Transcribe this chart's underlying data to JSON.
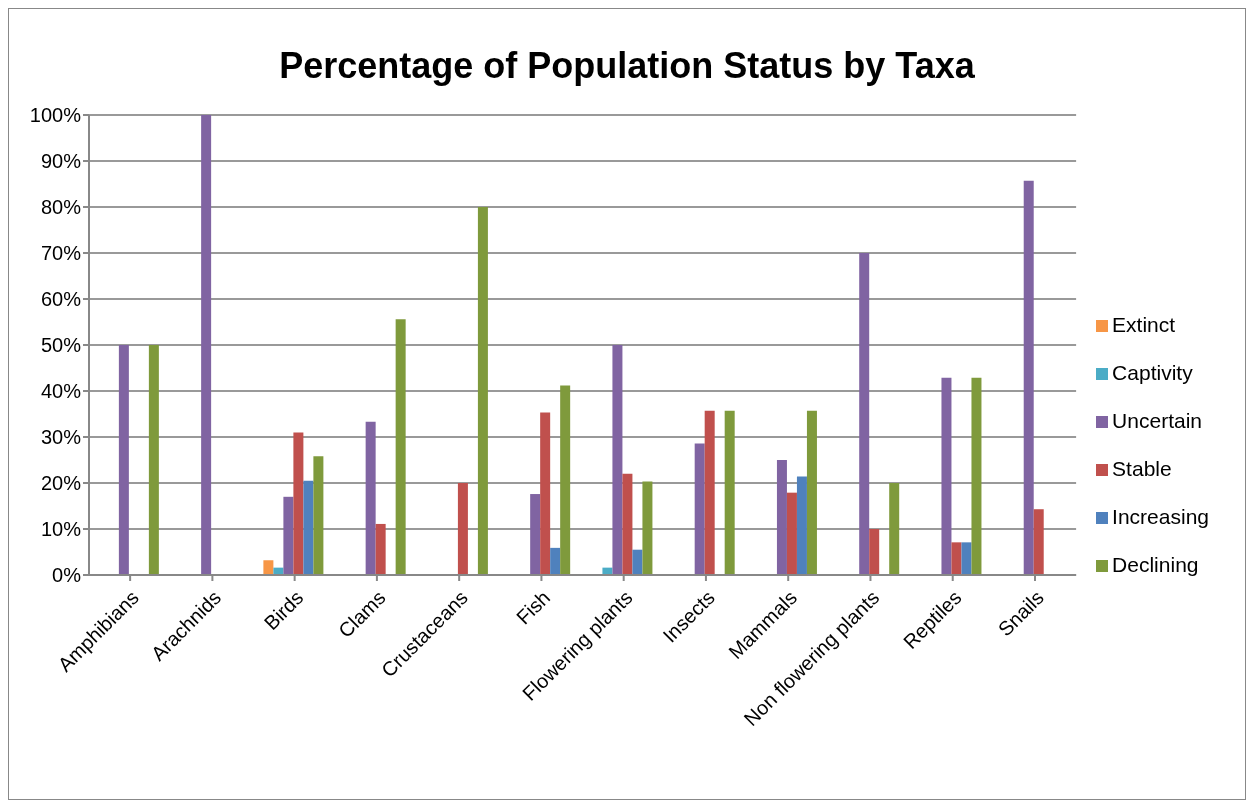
{
  "chart_data": {
    "type": "bar",
    "title": "Percentage of Population Status by Taxa",
    "categories": [
      "Amphibians",
      "Arachnids",
      "Birds",
      "Clams",
      "Crustaceans",
      "Fish",
      "Flowering plants",
      "Insects",
      "Mammals",
      "Non flowering plants",
      "Reptiles",
      "Snails"
    ],
    "series": [
      {
        "name": "Extinct",
        "color": "#f79646",
        "values": [
          0,
          0,
          3.2,
          0,
          0,
          0,
          0,
          0,
          0,
          0,
          0,
          0
        ]
      },
      {
        "name": "Captivity",
        "color": "#4bacc6",
        "values": [
          0,
          0,
          1.6,
          0,
          0,
          0,
          1.6,
          0,
          0,
          0,
          0,
          0
        ]
      },
      {
        "name": "Uncertain",
        "color": "#8064a2",
        "values": [
          50,
          100,
          17,
          33.3,
          0,
          17.6,
          50,
          28.6,
          25,
          70,
          42.9,
          85.7
        ]
      },
      {
        "name": "Stable",
        "color": "#c0504d",
        "values": [
          0,
          0,
          31,
          11.1,
          20,
          35.3,
          22,
          35.7,
          17.9,
          10,
          7.1,
          14.3
        ]
      },
      {
        "name": "Increasing",
        "color": "#4f81bd",
        "values": [
          0,
          0,
          20.5,
          0,
          0,
          5.9,
          5.5,
          0,
          21.4,
          0,
          7.1,
          0
        ]
      },
      {
        "name": "Declining",
        "color": "#7f9a3c",
        "values": [
          50,
          0,
          25.8,
          55.6,
          80,
          41.2,
          20.3,
          35.7,
          35.7,
          20,
          42.9,
          0
        ]
      }
    ],
    "ylim": [
      0,
      100
    ],
    "yticks": [
      {
        "value": 0,
        "label": "0%"
      },
      {
        "value": 10,
        "label": "10%"
      },
      {
        "value": 20,
        "label": "20%"
      },
      {
        "value": 30,
        "label": "30%"
      },
      {
        "value": 40,
        "label": "40%"
      },
      {
        "value": 50,
        "label": "50%"
      },
      {
        "value": 60,
        "label": "60%"
      },
      {
        "value": 70,
        "label": "70%"
      },
      {
        "value": 80,
        "label": "80%"
      },
      {
        "value": 90,
        "label": "90%"
      },
      {
        "value": 100,
        "label": "100%"
      }
    ],
    "grid": "y",
    "legend": "right"
  }
}
